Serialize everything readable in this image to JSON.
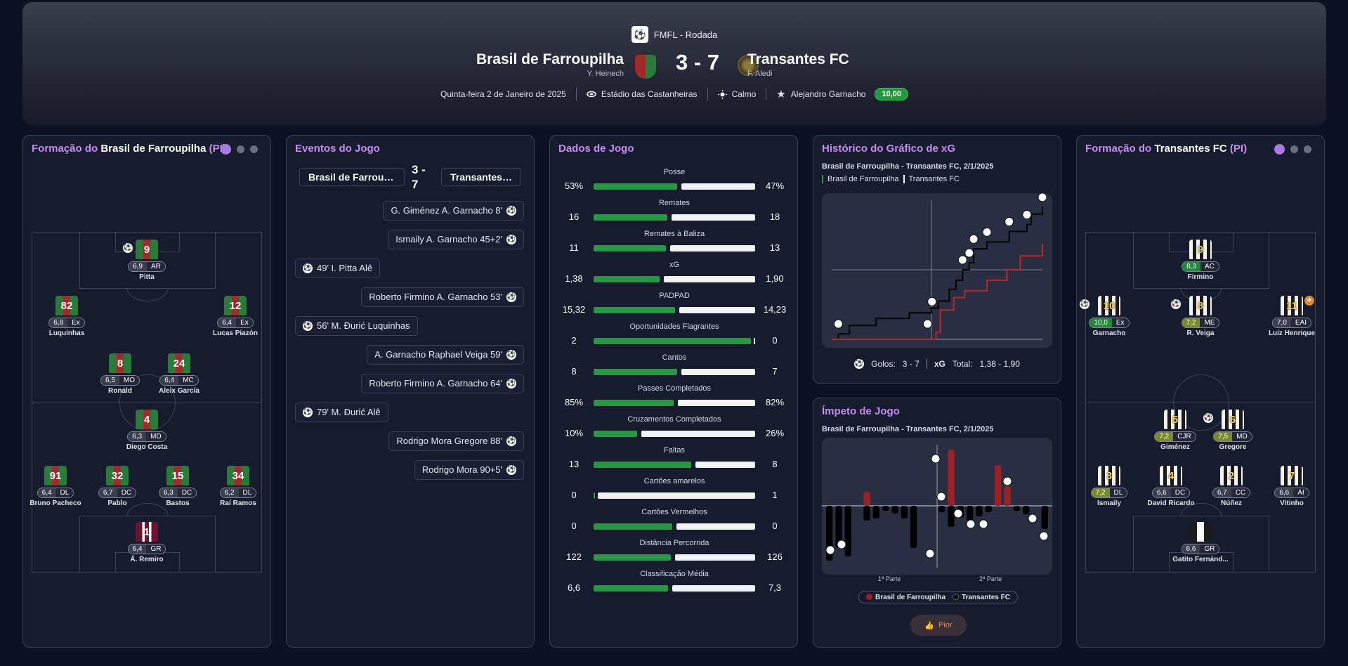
{
  "header": {
    "competition": "FMFL - Rodada",
    "home_team": "Brasil de Farroupilha",
    "home_coach": "Y. Heinech",
    "away_team": "Transantes FC",
    "away_coach": "F. Aledi",
    "score": "3 - 7",
    "date": "Quinta-feira 2 de Janeiro de 2025",
    "stadium": "Estádio das Castanheiras",
    "weather": "Calmo",
    "mvp_name": "Alejandro Garnacho",
    "mvp_rating": "10,00"
  },
  "home_formation": {
    "title_prefix": "Formação do",
    "team": "Brasil de Farroupilha",
    "suffix": "(PI)",
    "players": [
      {
        "number": "9",
        "rating": "6,9",
        "pos": "AR",
        "name": "Pitta"
      },
      {
        "number": "82",
        "rating": "6,8",
        "pos": "Ex",
        "name": "Luquinhas"
      },
      {
        "number": "12",
        "rating": "6,4",
        "pos": "Ex",
        "name": "Lucas Piazón"
      },
      {
        "number": "8",
        "rating": "6,5",
        "pos": "MO",
        "name": "Ronald"
      },
      {
        "number": "24",
        "rating": "6,4",
        "pos": "MC",
        "name": "Aleix García"
      },
      {
        "number": "4",
        "rating": "6,3",
        "pos": "MD",
        "name": "Diego Costa"
      },
      {
        "number": "91",
        "rating": "6,4",
        "pos": "DL",
        "name": "Bruno Pacheco"
      },
      {
        "number": "32",
        "rating": "6,7",
        "pos": "DC",
        "name": "Pablo"
      },
      {
        "number": "15",
        "rating": "6,3",
        "pos": "DC",
        "name": "Bastos"
      },
      {
        "number": "34",
        "rating": "6,2",
        "pos": "DL",
        "name": "Raí Ramos"
      },
      {
        "number": "1",
        "rating": "6,4",
        "pos": "GR",
        "name": "Á. Remiro"
      }
    ]
  },
  "away_formation": {
    "title_prefix": "Formação do",
    "team": "Transantes FC",
    "suffix": "(PI)",
    "players": [
      {
        "number": "9",
        "rating": "8,3",
        "pos": "AC",
        "name": "Firmino"
      },
      {
        "number": "10",
        "rating": "10,0",
        "pos": "Ex",
        "name": "Garnacho"
      },
      {
        "number": "8",
        "rating": "7,2",
        "pos": "ME",
        "name": "R. Veiga"
      },
      {
        "number": "11",
        "rating": "7,0",
        "pos": "EAI",
        "name": "Luiz Henrique"
      },
      {
        "number": "5",
        "rating": "7,2",
        "pos": "CJR",
        "name": "Giménez"
      },
      {
        "number": "6",
        "rating": "7,5",
        "pos": "MD",
        "name": "Gregore"
      },
      {
        "number": "3",
        "rating": "7,2",
        "pos": "DL",
        "name": "Ismaily"
      },
      {
        "number": "4",
        "rating": "6,6",
        "pos": "DC",
        "name": "David Ricardo"
      },
      {
        "number": "2",
        "rating": "6,7",
        "pos": "CC",
        "name": "Núñez"
      },
      {
        "number": "7",
        "rating": "6,6",
        "pos": "AI",
        "name": "Vitinho"
      },
      {
        "number": "1",
        "rating": "6,6",
        "pos": "GR",
        "name": "Gatito Fernánd..."
      }
    ]
  },
  "events": {
    "title": "Eventos do Jogo",
    "home_team": "Brasil de Farroupil...",
    "away_team": "Transantes ...",
    "score": "3 - 7",
    "items": [
      {
        "side": "away",
        "text": "G. Giménez  A. Garnacho  8'"
      },
      {
        "side": "away",
        "text": "Ismaily  A. Garnacho  45+2'"
      },
      {
        "side": "home",
        "text": "49'  I. Pitta  Alê"
      },
      {
        "side": "away",
        "text": "Roberto Firmino  A. Garnacho  53'"
      },
      {
        "side": "home",
        "text": "56'  M. Đurić  Luquinhas"
      },
      {
        "side": "away",
        "text": "A. Garnacho  Raphael Veiga  59'"
      },
      {
        "side": "away",
        "text": "Roberto Firmino  A. Garnacho  64'"
      },
      {
        "side": "home",
        "text": "79'  M. Đurić  Alê"
      },
      {
        "side": "away",
        "text": "Rodrigo Mora  Gregore  88'"
      },
      {
        "side": "away",
        "text": "Rodrigo Mora  90+5'"
      }
    ]
  },
  "stats": {
    "title": "Dados de Jogo",
    "items": [
      {
        "label": "Posse",
        "home": "53%",
        "away": "47%",
        "h": 53,
        "a": 47
      },
      {
        "label": "Remates",
        "home": "16",
        "away": "18",
        "h": 16,
        "a": 18
      },
      {
        "label": "Remates à Baliza",
        "home": "11",
        "away": "13",
        "h": 11,
        "a": 13
      },
      {
        "label": "xG",
        "home": "1,38",
        "away": "1,90",
        "h": 1.38,
        "a": 1.9
      },
      {
        "label": "PADPAD",
        "home": "15,32",
        "away": "14,23",
        "h": 15.32,
        "a": 14.23
      },
      {
        "label": "Oportunidades Flagrantes",
        "home": "2",
        "away": "0",
        "h": 2,
        "a": 0
      },
      {
        "label": "Cantos",
        "home": "8",
        "away": "7",
        "h": 8,
        "a": 7
      },
      {
        "label": "Passes Completados",
        "home": "85%",
        "away": "82%",
        "h": 85,
        "a": 82
      },
      {
        "label": "Cruzamentos Completados",
        "home": "10%",
        "away": "26%",
        "h": 10,
        "a": 26
      },
      {
        "label": "Faltas",
        "home": "13",
        "away": "8",
        "h": 13,
        "a": 8
      },
      {
        "label": "Cartões amarelos",
        "home": "0",
        "away": "1",
        "h": 0,
        "a": 1
      },
      {
        "label": "Cartões Vermelhos",
        "home": "0",
        "away": "0",
        "h": 0,
        "a": 0
      },
      {
        "label": "Distância Percorrida",
        "home": "122",
        "away": "126",
        "h": 122,
        "a": 126
      },
      {
        "label": "Classificação Média",
        "home": "6,6",
        "away": "7,3",
        "h": 6.6,
        "a": 7.3
      }
    ]
  },
  "xg_chart": {
    "title": "Histórico do Gráfico de xG",
    "subtitle": "Brasil de Farroupilha - Transantes FC, 2/1/2025",
    "legend_home": "Brasil de Farroupilha",
    "legend_away": "Transantes FC",
    "goals_label": "Golos:",
    "goals_value": "3 - 7",
    "xg_label": "xG",
    "xg_total_label": "Total:",
    "xg_total_value": "1,38  -  1,90",
    "home_color": "#b22a2a",
    "away_color": "#000000"
  },
  "momentum": {
    "title": "Ímpeto de Jogo",
    "subtitle": "Brasil de Farroupilha - Transantes FC, 2/1/2025",
    "first_half": "1ª Parte",
    "second_half": "2ª Parte",
    "legend_home": "Brasil de Farroupilha",
    "legend_away": "Transantes FC",
    "button_label": "Pior",
    "home_color": "#9a2226",
    "away_color": "#000000"
  },
  "chart_data": [
    {
      "type": "line",
      "xlim": [
        0,
        95
      ],
      "series": [
        {
          "name": "Transantes FC",
          "x": [
            0,
            3,
            8,
            20,
            35,
            45,
            48,
            53,
            56,
            59,
            62,
            64,
            70,
            80,
            88,
            90,
            95
          ],
          "y": [
            0,
            0.08,
            0.2,
            0.3,
            0.38,
            0.45,
            0.55,
            0.72,
            0.85,
            1.0,
            1.1,
            1.3,
            1.4,
            1.55,
            1.65,
            1.8,
            1.9
          ]
        },
        {
          "name": "Brasil de Farroupilha",
          "x": [
            0,
            45,
            47,
            49,
            55,
            60,
            70,
            79,
            85,
            95
          ],
          "y": [
            0,
            0,
            0.1,
            0.42,
            0.6,
            0.7,
            0.85,
            1.0,
            1.2,
            1.38
          ]
        }
      ]
    },
    {
      "type": "bar",
      "series": [
        {
          "name": "Brasil de Farroupilha",
          "values": [
            0,
            0,
            0,
            0,
            0.25,
            0,
            0,
            0,
            0,
            0,
            0,
            0,
            0,
            1.0,
            0,
            0,
            0,
            0,
            0.72,
            0.35,
            0,
            0,
            0,
            0
          ]
        },
        {
          "name": "Transantes FC",
          "values": [
            -1.3,
            -1.0,
            -1.2,
            0,
            -0.35,
            -0.3,
            -0.12,
            -0.18,
            -0.3,
            -1.0,
            0,
            0,
            -0.15,
            -0.5,
            -0.28,
            -0.35,
            -0.25,
            -0.15,
            0,
            0,
            -0.12,
            -0.2,
            0,
            -0.55
          ]
        }
      ]
    }
  ]
}
